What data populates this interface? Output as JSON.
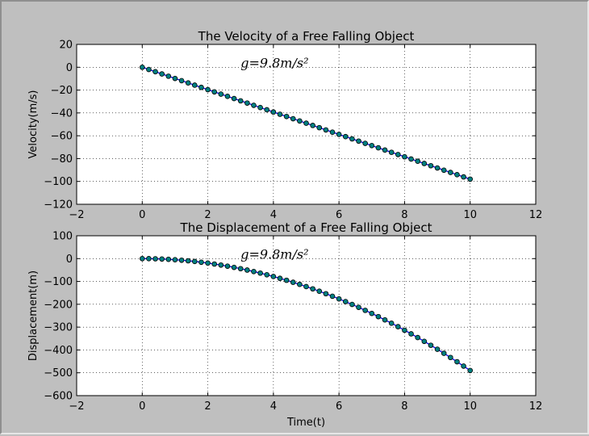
{
  "colors": {
    "figure_bg": "#bfbfbf",
    "axes_bg": "#ffffff",
    "line": "#0000ff",
    "marker_fill": "#008080",
    "marker_edge": "#000000",
    "grid": "#000000"
  },
  "chart_data": [
    {
      "type": "line",
      "title": "The Velocity of a Free Falling Object",
      "xlabel": "",
      "ylabel": "Velocity(m/s)",
      "annotation": "g=9.8m/s²",
      "annotation_pos": [
        3.0,
        0
      ],
      "xlim": [
        -2,
        12
      ],
      "ylim": [
        -120,
        20
      ],
      "xticks": [
        -2,
        0,
        2,
        4,
        6,
        8,
        10,
        12
      ],
      "yticks": [
        20,
        0,
        -20,
        -40,
        -60,
        -80,
        -100,
        -120
      ],
      "grid": true,
      "series": [
        {
          "x": [
            0.0,
            0.2,
            0.4,
            0.6,
            0.8,
            1.0,
            1.2,
            1.4,
            1.6,
            1.8,
            2.0,
            2.2,
            2.4,
            2.6,
            2.8,
            3.0,
            3.2,
            3.4,
            3.6,
            3.8,
            4.0,
            4.2,
            4.4,
            4.6,
            4.8,
            5.0,
            5.2,
            5.4,
            5.6,
            5.8,
            6.0,
            6.2,
            6.4,
            6.6,
            6.8,
            7.0,
            7.2,
            7.4,
            7.6,
            7.8,
            8.0,
            8.2,
            8.4,
            8.6,
            8.8,
            9.0,
            9.2,
            9.4,
            9.6,
            9.8,
            10.0
          ],
          "y": [
            0.0,
            -1.96,
            -3.92,
            -5.88,
            -7.84,
            -9.8,
            -11.76,
            -13.72,
            -15.68,
            -17.64,
            -19.6,
            -21.56,
            -23.52,
            -25.48,
            -27.44,
            -29.4,
            -31.36,
            -33.32,
            -35.28,
            -37.24,
            -39.2,
            -41.16,
            -43.12,
            -45.08,
            -47.04,
            -49.0,
            -50.96,
            -52.92,
            -54.88,
            -56.84,
            -58.8,
            -60.76,
            -62.72,
            -64.68,
            -66.64,
            -68.6,
            -70.56,
            -72.52,
            -74.48,
            -76.44,
            -78.4,
            -80.36,
            -82.32,
            -84.28,
            -86.24,
            -88.2,
            -90.16,
            -92.12,
            -94.08,
            -96.04,
            -98.0
          ]
        }
      ]
    },
    {
      "type": "line",
      "title": "The Displacement of a Free Falling Object",
      "xlabel": "Time(t)",
      "ylabel": "Displacement(m)",
      "annotation": "g=9.8m/s²",
      "annotation_pos": [
        3.0,
        0
      ],
      "xlim": [
        -2,
        12
      ],
      "ylim": [
        -600,
        100
      ],
      "xticks": [
        -2,
        0,
        2,
        4,
        6,
        8,
        10,
        12
      ],
      "yticks": [
        100,
        0,
        -100,
        -200,
        -300,
        -400,
        -500,
        -600
      ],
      "grid": true,
      "series": [
        {
          "x": [
            0.0,
            0.2,
            0.4,
            0.6,
            0.8,
            1.0,
            1.2,
            1.4,
            1.6,
            1.8,
            2.0,
            2.2,
            2.4,
            2.6,
            2.8,
            3.0,
            3.2,
            3.4,
            3.6,
            3.8,
            4.0,
            4.2,
            4.4,
            4.6,
            4.8,
            5.0,
            5.2,
            5.4,
            5.6,
            5.8,
            6.0,
            6.2,
            6.4,
            6.6,
            6.8,
            7.0,
            7.2,
            7.4,
            7.6,
            7.8,
            8.0,
            8.2,
            8.4,
            8.6,
            8.8,
            9.0,
            9.2,
            9.4,
            9.6,
            9.8,
            10.0
          ],
          "y": [
            0.0,
            -0.196,
            -0.784,
            -1.764,
            -3.136,
            -4.9,
            -7.056,
            -9.604,
            -12.544,
            -15.876,
            -19.6,
            -23.716,
            -28.224,
            -33.124,
            -38.416,
            -44.1,
            -50.176,
            -56.644,
            -63.504,
            -70.756,
            -78.4,
            -86.436,
            -94.864,
            -103.684,
            -112.896,
            -122.5,
            -132.496,
            -142.884,
            -153.664,
            -164.836,
            -176.4,
            -188.356,
            -200.704,
            -213.444,
            -226.576,
            -240.1,
            -254.016,
            -268.324,
            -283.024,
            -298.116,
            -313.6,
            -329.476,
            -345.744,
            -362.404,
            -379.456,
            -396.9,
            -414.736,
            -432.964,
            -451.584,
            -470.596,
            -490.0
          ]
        }
      ]
    }
  ]
}
